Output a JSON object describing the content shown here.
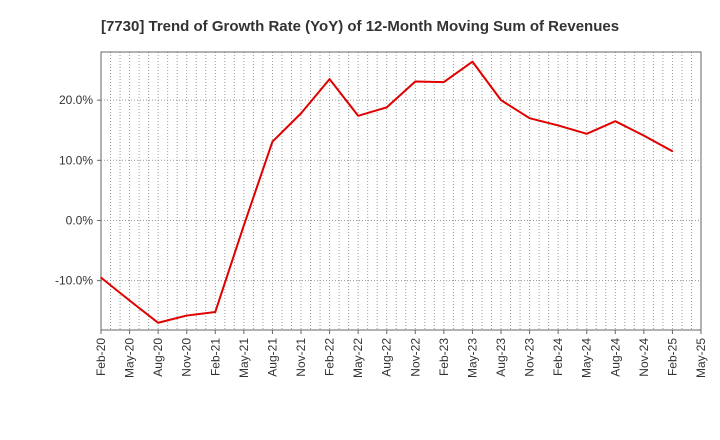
{
  "chart_data": {
    "type": "line",
    "title": "[7730]  Trend of Growth Rate (YoY) of 12-Month Moving Sum of Revenues",
    "xlabel": "",
    "ylabel": "",
    "x_tick_labels": [
      "Feb-20",
      "May-20",
      "Aug-20",
      "Nov-20",
      "Feb-21",
      "May-21",
      "Aug-21",
      "Nov-21",
      "Feb-22",
      "May-22",
      "Aug-22",
      "Nov-22",
      "Feb-23",
      "May-23",
      "Aug-23",
      "Nov-23",
      "Feb-24",
      "May-24",
      "Aug-24",
      "Nov-24",
      "Feb-25",
      "May-25"
    ],
    "y_ticks": [
      -10,
      0,
      10,
      20
    ],
    "y_tick_labels": [
      "-10.0%",
      "0.0%",
      "10.0%",
      "20.0%"
    ],
    "ylim": [
      -18.2,
      28.0
    ],
    "grid": true,
    "line_color": "#e00000",
    "series": [
      {
        "name": "",
        "x": [
          "Feb-20",
          "May-20",
          "Aug-20",
          "Nov-20",
          "Feb-21",
          "May-21",
          "Aug-21",
          "Nov-21",
          "Feb-22",
          "May-22",
          "Aug-22",
          "Nov-22",
          "Feb-23",
          "May-23",
          "Aug-23",
          "Nov-23",
          "Feb-24",
          "May-24",
          "Aug-24",
          "Nov-24",
          "Feb-25"
        ],
        "values": [
          -9.5,
          -13.3,
          -17.0,
          -15.8,
          -15.2,
          -0.8,
          13.1,
          17.8,
          23.5,
          17.4,
          18.8,
          23.1,
          23.0,
          26.4,
          20.0,
          17.0,
          15.8,
          14.4,
          16.5,
          14.1,
          11.5
        ]
      }
    ]
  }
}
